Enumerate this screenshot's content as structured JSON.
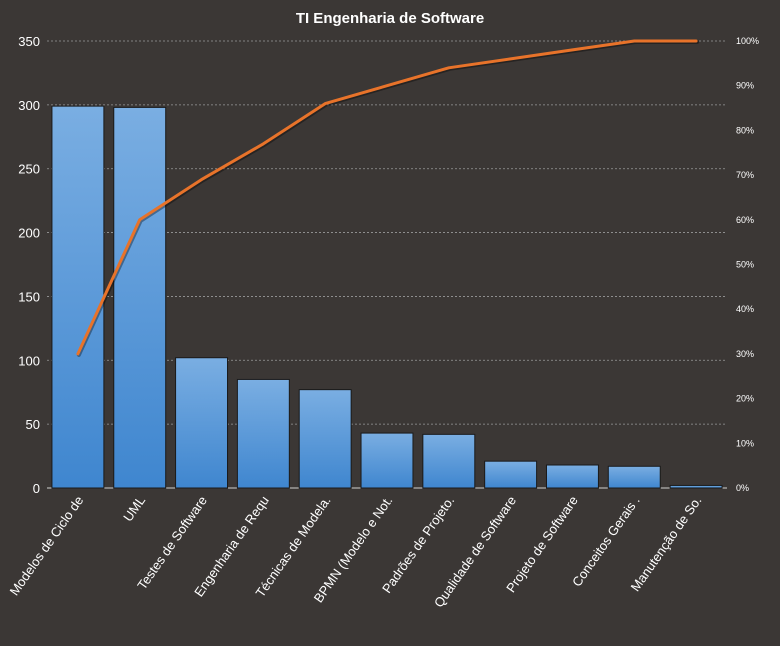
{
  "chart_data": {
    "type": "bar",
    "title": "TI Engenharia de Software",
    "categories": [
      "Modelos de Ciclo de",
      "UML",
      "Testes de Software",
      "Engenharia de Requ",
      "Técnicas de Modela.",
      "BPMN (Modelo e Not.",
      "Padrões de Projeto.",
      "Qualidade de Software",
      "Projeto de Software",
      "Conceitos Gerais .",
      "Manutenção de So."
    ],
    "series": [
      {
        "values": [
          299,
          298,
          102,
          85,
          77,
          43,
          42,
          21,
          18,
          17,
          2
        ]
      },
      {
        "values": [
          30,
          60,
          69,
          77,
          86,
          90,
          94,
          96,
          98,
          100,
          100
        ]
      }
    ],
    "y_left": {
      "ylim": [
        0,
        350
      ],
      "ticks": [
        "0",
        "50",
        "100",
        "150",
        "200",
        "250",
        "300",
        "350"
      ]
    },
    "y_right": {
      "ylim": [
        0,
        100
      ],
      "ticks": [
        "0%",
        "10%",
        "20%",
        "30%",
        "40%",
        "50%",
        "60%",
        "70%",
        "80%",
        "90%",
        "100%"
      ]
    },
    "grid": true,
    "legend": "none",
    "colors": {
      "background": "#3b3735",
      "bar_top": "#7aaee2",
      "bar_bottom": "#3f86cf",
      "bar_stroke": "#1a1a1a",
      "line": "#e8732a",
      "grid": "#9a9a9a",
      "text": "#ffffff"
    }
  }
}
